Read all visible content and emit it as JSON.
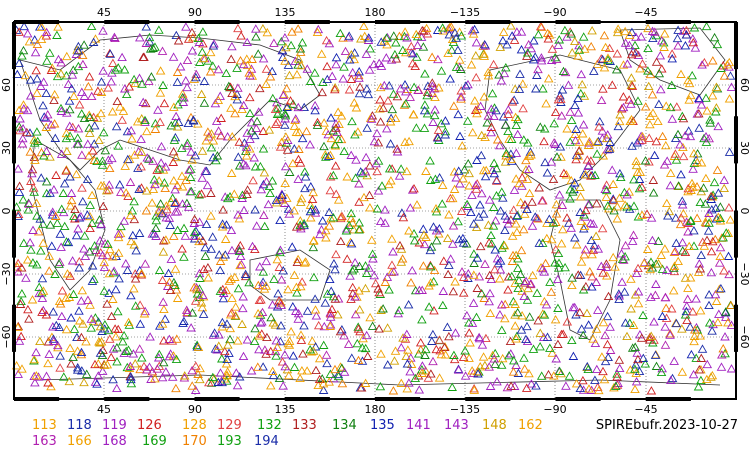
{
  "map": {
    "top_lon_labels": [
      "45",
      "90",
      "135",
      "180",
      "−135",
      "−90",
      "−45"
    ],
    "bottom_lon_labels": [
      "45",
      "90",
      "135",
      "180",
      "−135",
      "−90",
      "−45"
    ],
    "left_lat_labels": [
      "60",
      "30",
      "0",
      "−30",
      "−60"
    ],
    "right_lat_labels": [
      "60",
      "30",
      "0",
      "−30",
      "−60"
    ],
    "lon_range": [
      0,
      360
    ],
    "lat_range": [
      -90,
      90
    ],
    "marker_shape": "open-triangle"
  },
  "legend": {
    "row1": [
      {
        "label": "113",
        "color": "#f0a000"
      },
      {
        "label": "118",
        "color": "#1a2ca8"
      },
      {
        "label": "119",
        "color": "#a020c0"
      },
      {
        "label": "126",
        "color": "#d02020"
      },
      {
        "label": "128",
        "color": "#f0a000"
      },
      {
        "label": "129",
        "color": "#e04040"
      },
      {
        "label": "132",
        "color": "#10a010"
      },
      {
        "label": "133",
        "color": "#b02020"
      },
      {
        "label": "134",
        "color": "#108010"
      },
      {
        "label": "135",
        "color": "#1020b0"
      },
      {
        "label": "141",
        "color": "#a020c0"
      },
      {
        "label": "143",
        "color": "#a020c0"
      },
      {
        "label": "148",
        "color": "#d0a000"
      },
      {
        "label": "162",
        "color": "#f0a000"
      }
    ],
    "row2": [
      {
        "label": "163",
        "color": "#b020b0"
      },
      {
        "label": "166",
        "color": "#f0a000"
      },
      {
        "label": "168",
        "color": "#a020c0"
      },
      {
        "label": "169",
        "color": "#10a010"
      },
      {
        "label": "170",
        "color": "#f08000"
      },
      {
        "label": "193",
        "color": "#10a010"
      },
      {
        "label": "194",
        "color": "#1a2ca8"
      }
    ]
  },
  "source_label": "SPIREbufr.2023-10-27"
}
